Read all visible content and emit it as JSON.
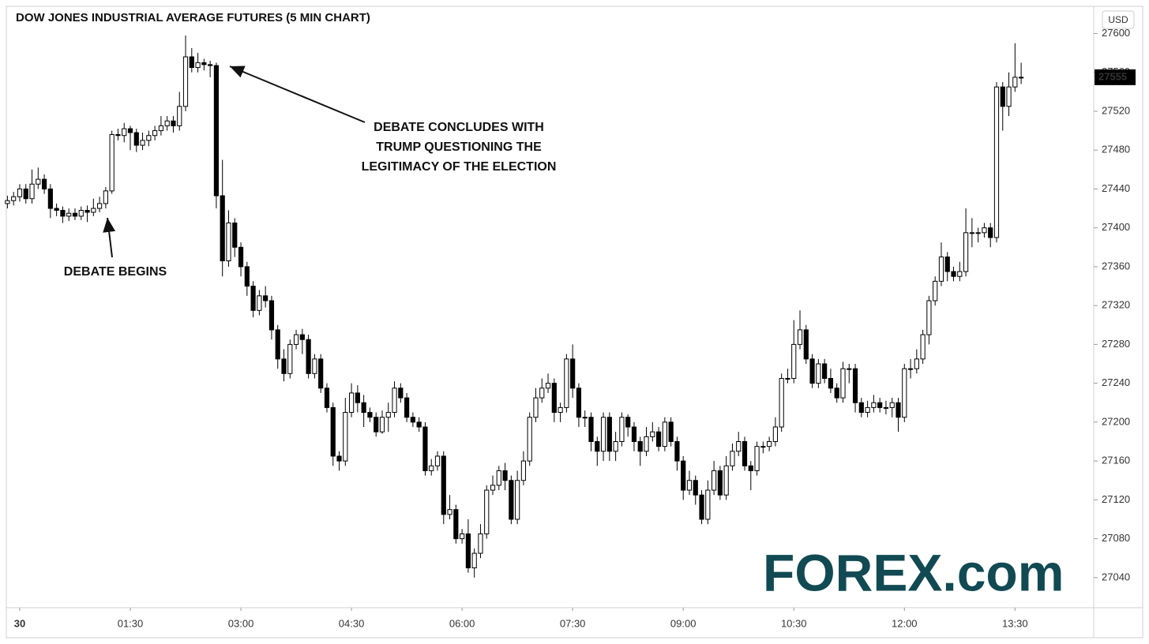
{
  "chart_data": {
    "type": "candlestick",
    "title": "DOW JONES INDUSTRIAL AVERAGE FUTURES (5 MIN CHART)",
    "currency": "USD",
    "annotations": [
      "DEBATE BEGINS",
      "DEBATE CONCLUDES WITH",
      "TRUMP QUESTIONING THE",
      "LEGITIMACY OF THE ELECTION"
    ],
    "logo": "FOREX.com",
    "up_color": "#ffffff",
    "down_color": "#000000",
    "edge_color": "#000000",
    "categories": [
      null,
      null,
      "30",
      null,
      null,
      null,
      null,
      null,
      null,
      null,
      null,
      null,
      null,
      null,
      null,
      null,
      null,
      null,
      null,
      null,
      "01:30",
      null,
      null,
      null,
      null,
      null,
      null,
      null,
      null,
      null,
      null,
      null,
      null,
      null,
      null,
      null,
      null,
      null,
      "03:00",
      null,
      null,
      null,
      null,
      null,
      null,
      null,
      null,
      null,
      null,
      null,
      null,
      null,
      null,
      null,
      null,
      null,
      "04:30",
      null,
      null,
      null,
      null,
      null,
      null,
      null,
      null,
      null,
      null,
      null,
      null,
      null,
      null,
      null,
      null,
      null,
      "06:00",
      null,
      null,
      null,
      null,
      null,
      null,
      null,
      null,
      null,
      null,
      null,
      null,
      null,
      null,
      null,
      null,
      null,
      "07:30",
      null,
      null,
      null,
      null,
      null,
      null,
      null,
      null,
      null,
      null,
      null,
      null,
      null,
      null,
      null,
      null,
      null,
      "09:00",
      null,
      null,
      null,
      null,
      null,
      null,
      null,
      null,
      null,
      null,
      null,
      null,
      null,
      null,
      null,
      null,
      null,
      "10:30",
      null,
      null,
      null,
      null,
      null,
      null,
      null,
      null,
      null,
      null,
      null,
      null,
      null,
      null,
      null,
      null,
      null,
      "12:00",
      null,
      null,
      null,
      null,
      null,
      null,
      null,
      null,
      null,
      null,
      null,
      null,
      null,
      null,
      null,
      null,
      null,
      "13:30",
      null
    ],
    "open": [
      27425,
      27428,
      27432,
      27440,
      27430,
      27445,
      27450,
      27440,
      27420,
      27418,
      27412,
      27415,
      27412,
      27418,
      27416,
      27420,
      27425,
      27438,
      27496,
      27495,
      27502,
      27498,
      27485,
      27490,
      27495,
      27500,
      27505,
      27510,
      27505,
      27525,
      27576,
      27565,
      27570,
      27568,
      27567,
      27433,
      27366,
      27405,
      27380,
      27360,
      27340,
      27315,
      27330,
      27325,
      27295,
      27265,
      27250,
      27280,
      27290,
      27285,
      27250,
      27265,
      27235,
      27215,
      27165,
      27160,
      27210,
      27230,
      27220,
      27210,
      27205,
      27190,
      27205,
      27210,
      27235,
      27225,
      27205,
      27200,
      27195,
      27150,
      27155,
      27165,
      27105,
      27110,
      27080,
      27085,
      27050,
      27065,
      27085,
      27130,
      27135,
      27150,
      27140,
      27100,
      27140,
      27160,
      27205,
      27225,
      27235,
      27240,
      27210,
      27215,
      27265,
      27235,
      27205,
      27205,
      27180,
      27170,
      27205,
      27170,
      27180,
      27205,
      27195,
      27180,
      27170,
      27185,
      27190,
      27175,
      27200,
      27180,
      27160,
      27130,
      27140,
      27125,
      27100,
      27130,
      27150,
      27125,
      27155,
      27170,
      27180,
      27155,
      27150,
      27175,
      27175,
      27180,
      27195,
      27245,
      27245,
      27280,
      27295,
      27265,
      27240,
      27260,
      27245,
      27235,
      27225,
      27255,
      27255,
      27220,
      27210,
      27215,
      27220,
      27215,
      27215,
      27220,
      27205,
      27255,
      27255,
      27265,
      27290,
      27325,
      27345,
      27370,
      27355,
      27350,
      27355,
      27395,
      27395,
      27395,
      27400,
      27390,
      27545,
      27525,
      27545,
      27555
    ],
    "high": [
      27433,
      27437,
      27445,
      27445,
      27460,
      27462,
      27455,
      27445,
      27425,
      27422,
      27420,
      27420,
      27422,
      27423,
      27430,
      27432,
      27442,
      27500,
      27502,
      27508,
      27505,
      27502,
      27498,
      27500,
      27505,
      27515,
      27515,
      27515,
      27540,
      27598,
      27585,
      27580,
      27574,
      27572,
      27570,
      27470,
      27418,
      27410,
      27385,
      27365,
      27345,
      27336,
      27340,
      27330,
      27300,
      27275,
      27285,
      27295,
      27296,
      27290,
      27270,
      27270,
      27240,
      27220,
      27170,
      27225,
      27240,
      27238,
      27228,
      27215,
      27210,
      27212,
      27220,
      27242,
      27240,
      27230,
      27210,
      27205,
      27200,
      27162,
      27170,
      27170,
      27125,
      27115,
      27090,
      27100,
      27070,
      27095,
      27135,
      27145,
      27155,
      27158,
      27145,
      27150,
      27170,
      27210,
      27235,
      27245,
      27250,
      27245,
      27220,
      27270,
      27280,
      27240,
      27212,
      27210,
      27185,
      27210,
      27210,
      27190,
      27210,
      27208,
      27200,
      27185,
      27195,
      27200,
      27195,
      27205,
      27205,
      27185,
      27165,
      27150,
      27145,
      27130,
      27140,
      27160,
      27155,
      27165,
      27178,
      27190,
      27185,
      27160,
      27180,
      27180,
      27185,
      27205,
      27250,
      27255,
      27305,
      27315,
      27300,
      27270,
      27265,
      27265,
      27255,
      27240,
      27262,
      27260,
      27260,
      27225,
      27222,
      27228,
      27225,
      27222,
      27225,
      27225,
      27260,
      27265,
      27275,
      27295,
      27330,
      27350,
      27385,
      27375,
      27360,
      27365,
      27420,
      27410,
      27400,
      27405,
      27405,
      27550,
      27550,
      27560,
      27590,
      27570
    ],
    "low": [
      27420,
      27423,
      27427,
      27425,
      27425,
      27440,
      27435,
      27410,
      27412,
      27405,
      27407,
      27408,
      27408,
      27406,
      27412,
      27416,
      27420,
      27435,
      27490,
      27488,
      27480,
      27478,
      27480,
      27484,
      27490,
      27495,
      27500,
      27498,
      27500,
      27520,
      27560,
      27560,
      27562,
      27555,
      27420,
      27350,
      27360,
      27370,
      27350,
      27330,
      27308,
      27310,
      27318,
      27285,
      27255,
      27242,
      27245,
      27275,
      27270,
      27245,
      27245,
      27230,
      27210,
      27155,
      27150,
      27155,
      27205,
      27210,
      27195,
      27200,
      27185,
      27188,
      27190,
      27205,
      27220,
      27200,
      27195,
      27190,
      27145,
      27145,
      27150,
      27095,
      27100,
      27075,
      27075,
      27045,
      27040,
      27060,
      27080,
      27125,
      27130,
      27130,
      27095,
      27095,
      27135,
      27155,
      27200,
      27220,
      27230,
      27200,
      27200,
      27210,
      27225,
      27195,
      27195,
      27170,
      27155,
      27160,
      27160,
      27160,
      27175,
      27185,
      27170,
      27155,
      27165,
      27180,
      27170,
      27170,
      27175,
      27150,
      27120,
      27125,
      27115,
      27095,
      27095,
      27125,
      27120,
      27120,
      27150,
      27165,
      27150,
      27130,
      27145,
      27168,
      27170,
      27175,
      27190,
      27240,
      27240,
      27275,
      27260,
      27235,
      27235,
      27240,
      27230,
      27220,
      27220,
      27240,
      27210,
      27205,
      27205,
      27210,
      27210,
      27208,
      27205,
      27190,
      27200,
      27245,
      27250,
      27260,
      27280,
      27320,
      27340,
      27345,
      27345,
      27345,
      27350,
      27380,
      27385,
      27390,
      27380,
      27385,
      27500,
      27515,
      27540,
      27548
    ],
    "close": [
      27428,
      27432,
      27440,
      27430,
      27445,
      27450,
      27440,
      27420,
      27418,
      27412,
      27415,
      27412,
      27418,
      27416,
      27420,
      27425,
      27438,
      27496,
      27495,
      27502,
      27498,
      27485,
      27490,
      27495,
      27500,
      27505,
      27510,
      27505,
      27525,
      27576,
      27565,
      27570,
      27568,
      27567,
      27433,
      27366,
      27405,
      27380,
      27360,
      27340,
      27315,
      27330,
      27325,
      27295,
      27265,
      27250,
      27280,
      27290,
      27285,
      27250,
      27265,
      27235,
      27215,
      27165,
      27160,
      27210,
      27230,
      27220,
      27210,
      27205,
      27190,
      27205,
      27210,
      27235,
      27225,
      27205,
      27200,
      27195,
      27150,
      27155,
      27165,
      27105,
      27110,
      27080,
      27085,
      27050,
      27065,
      27085,
      27130,
      27135,
      27150,
      27140,
      27100,
      27140,
      27160,
      27205,
      27225,
      27235,
      27240,
      27210,
      27215,
      27265,
      27235,
      27205,
      27205,
      27180,
      27170,
      27205,
      27170,
      27180,
      27205,
      27195,
      27180,
      27170,
      27185,
      27190,
      27175,
      27200,
      27180,
      27160,
      27130,
      27140,
      27125,
      27100,
      27130,
      27150,
      27125,
      27155,
      27170,
      27180,
      27155,
      27150,
      27175,
      27175,
      27180,
      27195,
      27245,
      27245,
      27280,
      27295,
      27265,
      27240,
      27260,
      27245,
      27235,
      27225,
      27255,
      27255,
      27220,
      27210,
      27215,
      27220,
      27215,
      27215,
      27220,
      27205,
      27255,
      27255,
      27265,
      27290,
      27325,
      27345,
      27370,
      27355,
      27350,
      27355,
      27395,
      27395,
      27395,
      27400,
      27390,
      27545,
      27525,
      27545,
      27555,
      27555
    ],
    "ylim": [
      27009,
      27628
    ],
    "yticks": [
      27040,
      27080,
      27120,
      27160,
      27200,
      27240,
      27280,
      27320,
      27360,
      27400,
      27440,
      27480,
      27520,
      27560,
      27600
    ],
    "grid": false
  }
}
